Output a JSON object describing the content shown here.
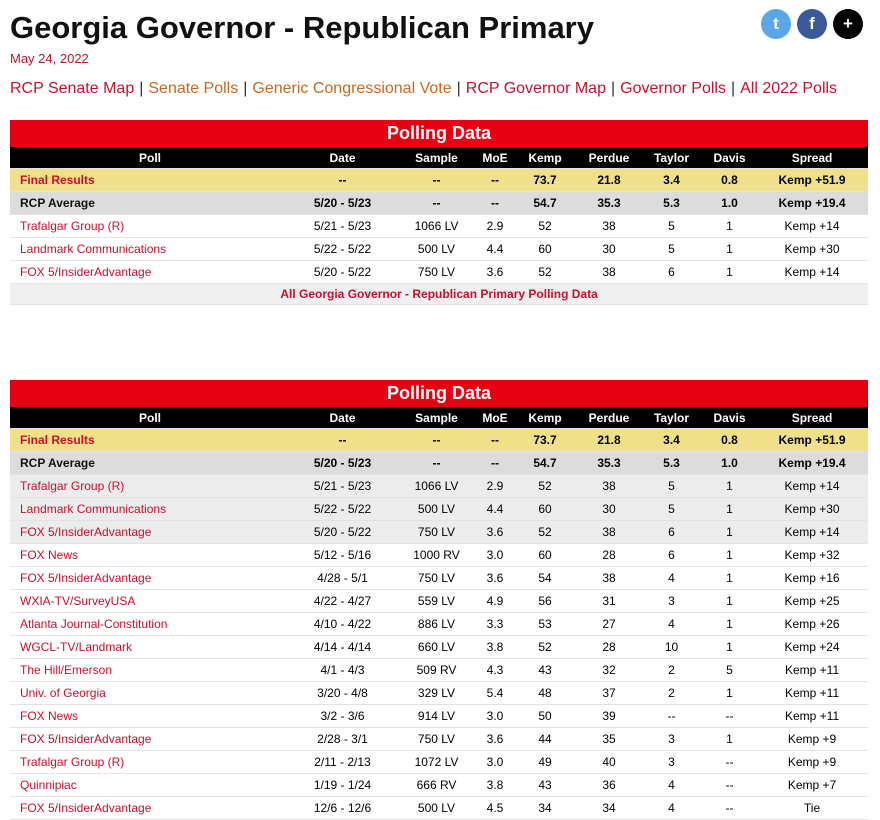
{
  "header": {
    "title": "Georgia Governor - Republican Primary",
    "date": "May 24, 2022"
  },
  "nav": {
    "separator": "|",
    "links": [
      {
        "label": "RCP Senate Map",
        "color": "#c8102e"
      },
      {
        "label": "Senate Polls",
        "color": "#c8681e"
      },
      {
        "label": "Generic Congressional Vote",
        "color": "#c8681e"
      },
      {
        "label": "RCP Governor Map",
        "color": "#c8102e"
      },
      {
        "label": "Governor Polls",
        "color": "#c8102e"
      },
      {
        "label": "All 2022 Polls",
        "color": "#c8102e"
      }
    ]
  },
  "tables": [
    {
      "title": "Polling Data",
      "columns": [
        "Poll",
        "Date",
        "Sample",
        "MoE",
        "Kemp",
        "Perdue",
        "Taylor",
        "Davis",
        "Spread"
      ],
      "rows": [
        [
          "Final Results",
          "--",
          "--",
          "--",
          "73.7",
          "21.8",
          "3.4",
          "0.8",
          "Kemp +51.9"
        ],
        [
          "RCP Average",
          "5/20 - 5/23",
          "--",
          "--",
          "54.7",
          "35.3",
          "5.3",
          "1.0",
          "Kemp +19.4"
        ],
        [
          "Trafalgar Group (R)",
          "5/21 - 5/23",
          "1066 LV",
          "2.9",
          "52",
          "38",
          "5",
          "1",
          "Kemp +14"
        ],
        [
          "Landmark Communications",
          "5/22 - 5/22",
          "500 LV",
          "4.4",
          "60",
          "30",
          "5",
          "1",
          "Kemp +30"
        ],
        [
          "FOX 5/InsiderAdvantage",
          "5/20 - 5/22",
          "750 LV",
          "3.6",
          "52",
          "38",
          "6",
          "1",
          "Kemp +14"
        ]
      ],
      "footer": "All Georgia Governor - Republican Primary Polling Data"
    },
    {
      "title": "Polling Data",
      "columns": [
        "Poll",
        "Date",
        "Sample",
        "MoE",
        "Kemp",
        "Perdue",
        "Taylor",
        "Davis",
        "Spread"
      ],
      "rows": [
        [
          "Final Results",
          "--",
          "--",
          "--",
          "73.7",
          "21.8",
          "3.4",
          "0.8",
          "Kemp +51.9"
        ],
        [
          "RCP Average",
          "5/20 - 5/23",
          "--",
          "--",
          "54.7",
          "35.3",
          "5.3",
          "1.0",
          "Kemp +19.4"
        ],
        [
          "Trafalgar Group (R)",
          "5/21 - 5/23",
          "1066 LV",
          "2.9",
          "52",
          "38",
          "5",
          "1",
          "Kemp +14"
        ],
        [
          "Landmark Communications",
          "5/22 - 5/22",
          "500 LV",
          "4.4",
          "60",
          "30",
          "5",
          "1",
          "Kemp +30"
        ],
        [
          "FOX 5/InsiderAdvantage",
          "5/20 - 5/22",
          "750 LV",
          "3.6",
          "52",
          "38",
          "6",
          "1",
          "Kemp +14"
        ],
        [
          "FOX News",
          "5/12 - 5/16",
          "1000 RV",
          "3.0",
          "60",
          "28",
          "6",
          "1",
          "Kemp +32"
        ],
        [
          "FOX 5/InsiderAdvantage",
          "4/28 - 5/1",
          "750 LV",
          "3.6",
          "54",
          "38",
          "4",
          "1",
          "Kemp +16"
        ],
        [
          "WXIA-TV/SurveyUSA",
          "4/22 - 4/27",
          "559 LV",
          "4.9",
          "56",
          "31",
          "3",
          "1",
          "Kemp +25"
        ],
        [
          "Atlanta Journal-Constitution",
          "4/10 - 4/22",
          "886 LV",
          "3.3",
          "53",
          "27",
          "4",
          "1",
          "Kemp +26"
        ],
        [
          "WGCL-TV/Landmark",
          "4/14 - 4/14",
          "660 LV",
          "3.8",
          "52",
          "28",
          "10",
          "1",
          "Kemp +24"
        ],
        [
          "The Hill/Emerson",
          "4/1 - 4/3",
          "509 RV",
          "4.3",
          "43",
          "32",
          "2",
          "5",
          "Kemp +11"
        ],
        [
          "Univ. of Georgia",
          "3/20 - 4/8",
          "329 LV",
          "5.4",
          "48",
          "37",
          "2",
          "1",
          "Kemp +11"
        ],
        [
          "FOX News",
          "3/2 - 3/6",
          "914 LV",
          "3.0",
          "50",
          "39",
          "--",
          "--",
          "Kemp +11"
        ],
        [
          "FOX 5/InsiderAdvantage",
          "2/28 - 3/1",
          "750 LV",
          "3.6",
          "44",
          "35",
          "3",
          "1",
          "Kemp +9"
        ],
        [
          "Trafalgar Group (R)",
          "2/11 - 2/13",
          "1072 LV",
          "3.0",
          "49",
          "40",
          "3",
          "--",
          "Kemp +9"
        ],
        [
          "Quinnipiac",
          "1/19 - 1/24",
          "666 RV",
          "3.8",
          "43",
          "36",
          "4",
          "--",
          "Kemp +7"
        ],
        [
          "FOX 5/InsiderAdvantage",
          "12/6 - 12/6",
          "500 LV",
          "4.5",
          "34",
          "34",
          "4",
          "--",
          "Tie"
        ]
      ]
    }
  ]
}
